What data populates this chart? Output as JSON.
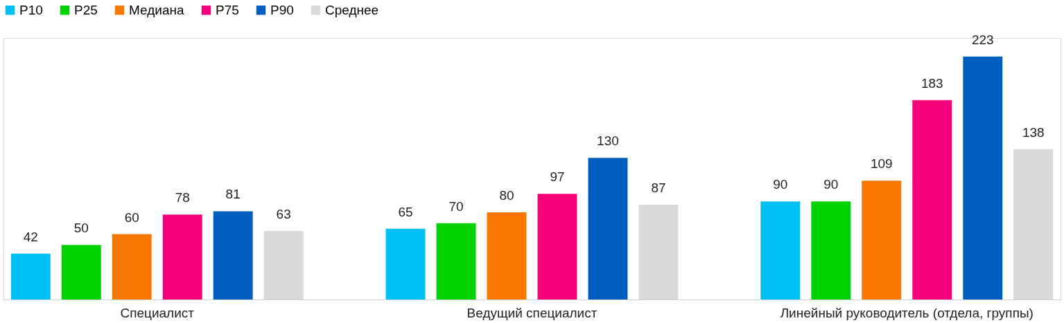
{
  "chart_data": {
    "type": "bar",
    "categories": [
      "Специалист",
      "Ведущий специалист",
      "Линейный руководитель (отдела, группы)"
    ],
    "series": [
      {
        "name": "P10",
        "color": "#00bff3",
        "values": [
          42,
          65,
          90
        ]
      },
      {
        "name": "P25",
        "color": "#00d200",
        "values": [
          50,
          70,
          90
        ]
      },
      {
        "name": "Медиана",
        "color": "#f77700",
        "values": [
          60,
          80,
          109
        ]
      },
      {
        "name": "P75",
        "color": "#f5007a",
        "values": [
          78,
          97,
          183
        ]
      },
      {
        "name": "P90",
        "color": "#005ebf",
        "values": [
          81,
          130,
          223
        ]
      },
      {
        "name": "Среднее",
        "color": "#d9d9d9",
        "values": [
          63,
          87,
          138
        ]
      }
    ],
    "ylim": [
      0,
      240
    ],
    "data_labels": true,
    "legend": "top",
    "grid": false,
    "tick_labels": "x"
  }
}
